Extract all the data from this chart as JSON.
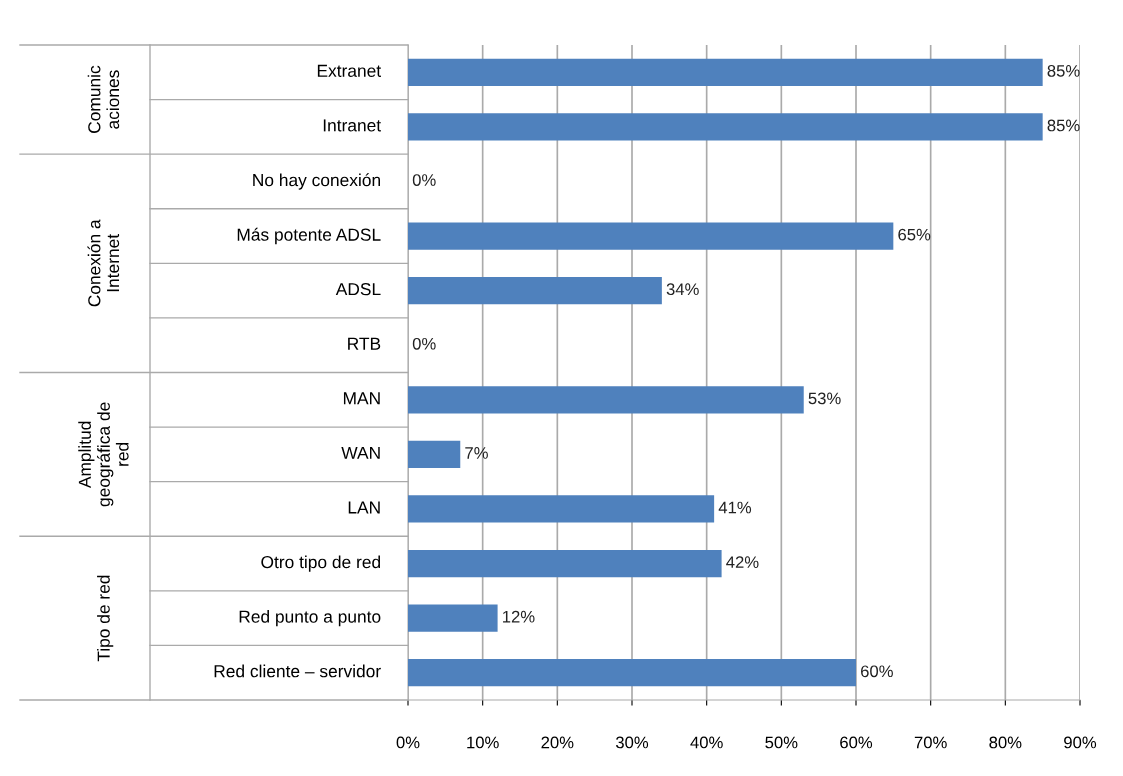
{
  "chart_data": {
    "type": "bar",
    "orientation": "horizontal",
    "categories": [
      "Extranet",
      "Intranet",
      "No hay conexión",
      "Más potente ADSL",
      "ADSL",
      "RTB",
      "MAN",
      "WAN",
      "LAN",
      "Otro tipo de red",
      "Red punto a punto",
      "Red cliente – servidor"
    ],
    "values": [
      85,
      85,
      0,
      65,
      34,
      0,
      53,
      7,
      41,
      42,
      12,
      60
    ],
    "value_labels": [
      "85%",
      "85%",
      "0%",
      "65%",
      "34%",
      "0%",
      "53%",
      "7%",
      "41%",
      "42%",
      "12%",
      "60%"
    ],
    "color": "#4f81bd",
    "xlim": [
      0,
      90
    ],
    "xticks": [
      {
        "value": 0,
        "label": "0%"
      },
      {
        "value": 10,
        "label": "10%"
      },
      {
        "value": 20,
        "label": "20%"
      },
      {
        "value": 30,
        "label": "30%"
      },
      {
        "value": 40,
        "label": "40%"
      },
      {
        "value": 50,
        "label": "50%"
      },
      {
        "value": 60,
        "label": "60%"
      },
      {
        "value": 70,
        "label": "70%"
      },
      {
        "value": 80,
        "label": "80%"
      },
      {
        "value": 90,
        "label": "90%"
      }
    ],
    "grid": "x",
    "annotations": [
      "Comunic\naciones",
      "Conexión a\nInternet",
      "Amplitud\ngeográfica de\nred",
      "Tipo de red"
    ]
  }
}
